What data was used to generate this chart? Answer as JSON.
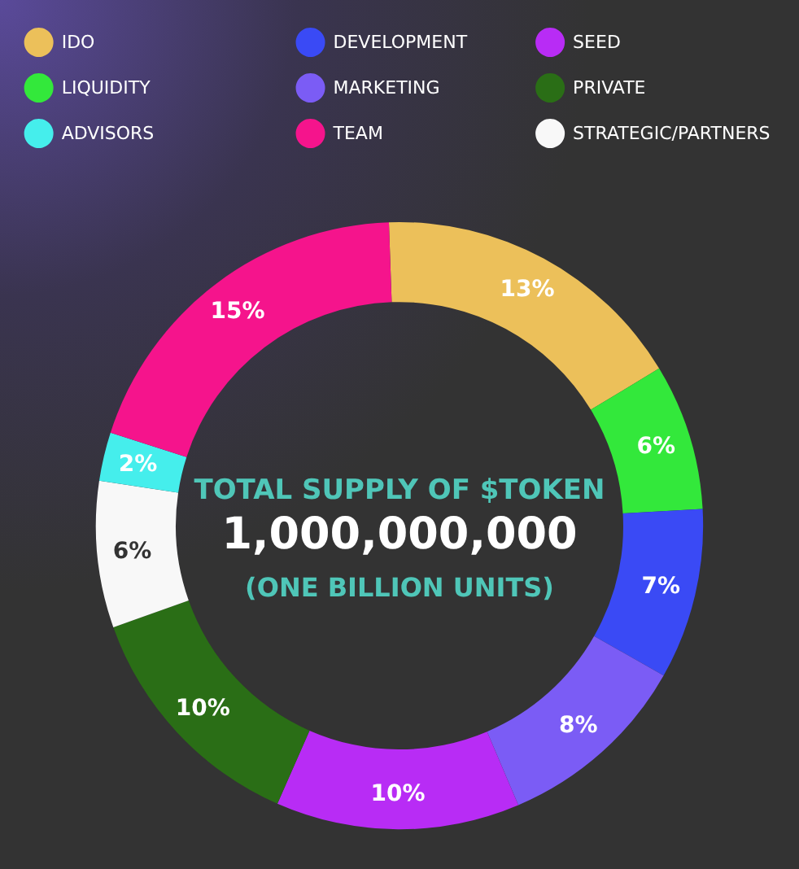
{
  "chart_data": {
    "type": "donut",
    "title": "TOTAL SUPPLY OF $TOKEN",
    "subtitle": "1,000,000,000",
    "annotations": [
      "(ONE BILLION UNITS)"
    ],
    "categories": [
      "IDO",
      "LIQUIDITY",
      "DEVELOPMENT",
      "MARKETING",
      "SEED",
      "PRIVATE",
      "STRATEGIC/PARTNERS",
      "ADVISORS",
      "TEAM"
    ],
    "values": [
      13,
      6,
      7,
      8,
      10,
      10,
      6,
      2,
      15
    ],
    "value_labels": [
      "13%",
      "6%",
      "7%",
      "8%",
      "10%",
      "10%",
      "6%",
      "2%",
      "15%"
    ],
    "colors": [
      "#ecc05a",
      "#33e83b",
      "#3a4af5",
      "#7b5cf5",
      "#b82cf5",
      "#2a6e16",
      "#f8f8f8",
      "#45eeec",
      "#f5148c"
    ],
    "legend": "top"
  }
}
